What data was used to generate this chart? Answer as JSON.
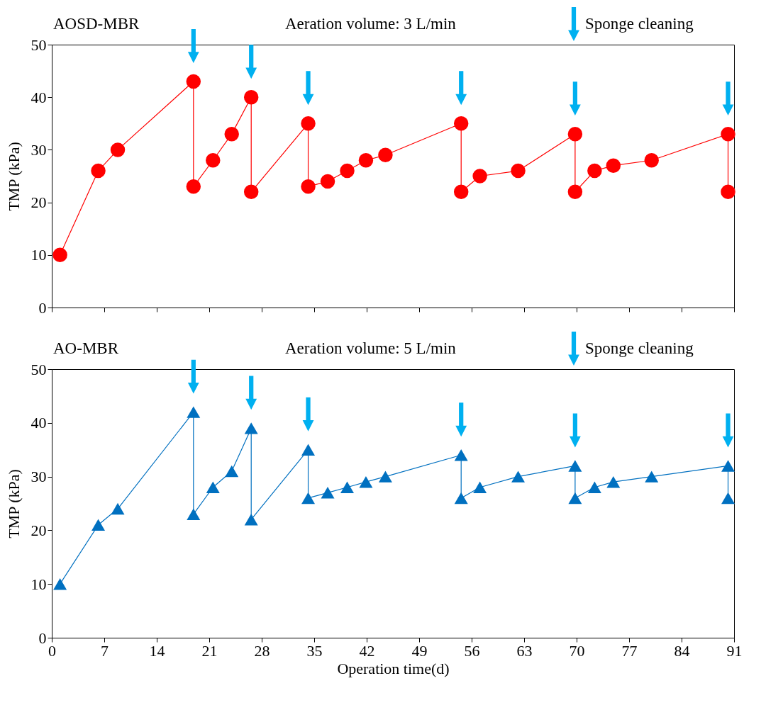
{
  "chart_data": [
    {
      "type": "line",
      "annotations": [
        "AOSD-MBR",
        "Aeration volume: 3 L/min",
        "Sponge cleaning"
      ],
      "ylabel": "TMP (kPa)",
      "marker": "circle",
      "tick_labels": "y",
      "x": [
        1.1,
        6.2,
        8.8,
        18.9,
        18.9,
        21.5,
        24,
        26.6,
        26.6,
        34.2,
        34.2,
        36.8,
        39.4,
        41.9,
        44.5,
        54.6,
        54.6,
        57.1,
        62.2,
        69.8,
        69.8,
        72.4,
        74.9,
        80,
        90.2,
        90.2
      ],
      "series": [
        {
          "color": "#ff0000",
          "values": [
            10,
            26,
            30,
            43,
            23,
            28,
            33,
            40,
            22,
            35,
            23,
            24,
            26,
            28,
            29,
            35,
            22,
            25,
            26,
            33,
            22,
            26,
            27,
            28,
            33,
            22
          ]
        }
      ],
      "xlim": [
        0,
        91
      ],
      "xticks": [
        0,
        7,
        14,
        21,
        28,
        35,
        42,
        49,
        56,
        63,
        70,
        77,
        84,
        91
      ],
      "ylim": [
        0,
        50
      ],
      "yticks": [
        0,
        10,
        20,
        30,
        40,
        50
      ]
    },
    {
      "type": "line",
      "annotations": [
        "AO-MBR",
        "Aeration volume: 5 L/min",
        "Sponge cleaning"
      ],
      "xlabel": "Operation time(d)",
      "ylabel": "TMP (kPa)",
      "marker": "triangle",
      "x": [
        1.1,
        6.2,
        8.8,
        18.9,
        18.9,
        21.5,
        24,
        26.6,
        26.6,
        34.2,
        34.2,
        36.8,
        39.4,
        41.9,
        44.5,
        54.6,
        54.6,
        57.1,
        62.2,
        69.8,
        69.8,
        72.4,
        74.9,
        80,
        90.2,
        90.2
      ],
      "series": [
        {
          "color": "#0070c0",
          "values": [
            10,
            21,
            24,
            42,
            23,
            28,
            31,
            39,
            22,
            35,
            26,
            27,
            28,
            29,
            30,
            34,
            26,
            28,
            30,
            32,
            26,
            28,
            29,
            30,
            32,
            26
          ]
        }
      ],
      "xlim": [
        0,
        91
      ],
      "xticks": [
        0,
        7,
        14,
        21,
        28,
        35,
        42,
        49,
        56,
        63,
        70,
        77,
        84,
        91
      ],
      "ylim": [
        0,
        50
      ],
      "yticks": [
        0,
        10,
        20,
        30,
        40,
        50
      ]
    }
  ]
}
